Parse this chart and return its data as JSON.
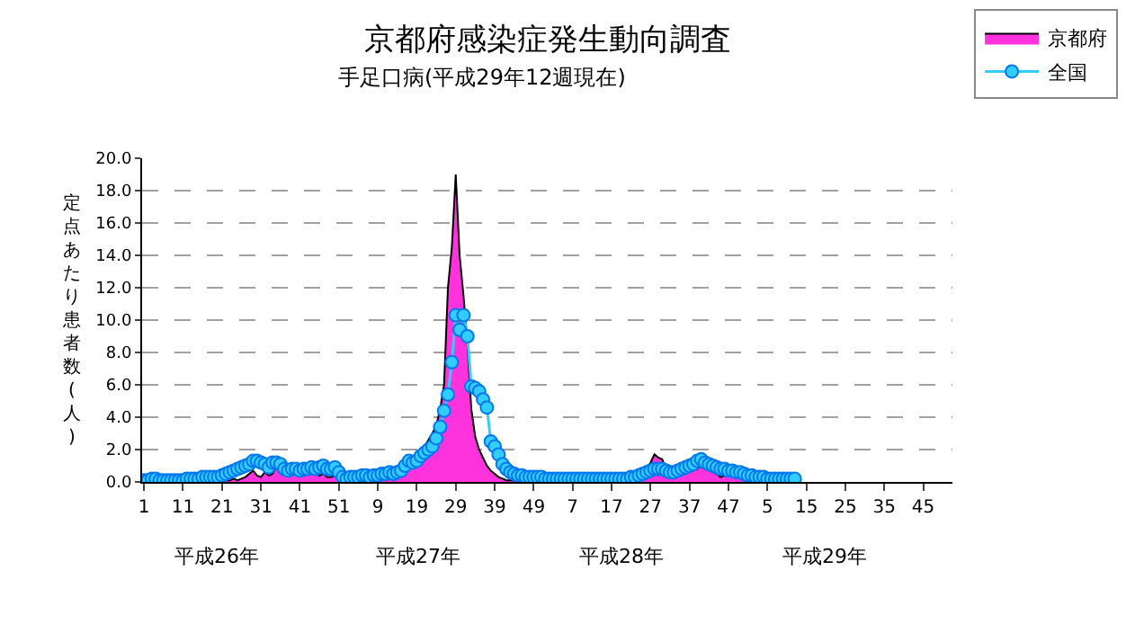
{
  "chart_data": {
    "type": "line",
    "title": "京都府感染症発生動向調査",
    "subtitle": "手足口病(平成29年12週現在)",
    "ylabel": "定点あたり患者数(人)",
    "categories": [
      "1",
      null,
      null,
      null,
      null,
      null,
      null,
      null,
      null,
      null,
      "11",
      null,
      null,
      null,
      null,
      null,
      null,
      null,
      null,
      null,
      "21",
      null,
      null,
      null,
      null,
      null,
      null,
      null,
      null,
      null,
      "31",
      null,
      null,
      null,
      null,
      null,
      null,
      null,
      null,
      null,
      "41",
      null,
      null,
      null,
      null,
      null,
      null,
      null,
      null,
      null,
      "51",
      null,
      null,
      null,
      null,
      null,
      null,
      null,
      null,
      null,
      "9",
      null,
      null,
      null,
      null,
      null,
      null,
      null,
      null,
      null,
      "19",
      null,
      null,
      null,
      null,
      null,
      null,
      null,
      null,
      null,
      "29",
      null,
      null,
      null,
      null,
      null,
      null,
      null,
      null,
      null,
      "39",
      null,
      null,
      null,
      null,
      null,
      null,
      null,
      null,
      null,
      "49",
      null,
      null,
      null,
      null,
      null,
      null,
      null,
      null,
      null,
      "7",
      null,
      null,
      null,
      null,
      null,
      null,
      null,
      null,
      null,
      "17",
      null,
      null,
      null,
      null,
      null,
      null,
      null,
      null,
      null,
      "27",
      null,
      null,
      null,
      null,
      null,
      null,
      null,
      null,
      null,
      "37",
      null,
      null,
      null,
      null,
      null,
      null,
      null,
      null,
      null,
      "47",
      null,
      null,
      null,
      null,
      null,
      null,
      null,
      null,
      null,
      "5",
      null,
      null,
      null,
      null,
      null,
      null,
      null,
      null,
      null,
      "15",
      null,
      null,
      null,
      null,
      null,
      null,
      null,
      null,
      null,
      "25",
      null,
      null,
      null,
      null,
      null,
      null,
      null,
      null,
      null,
      "35",
      null,
      null,
      null,
      null,
      null,
      null,
      null,
      null,
      null,
      "45",
      null,
      null,
      null,
      null,
      null,
      null,
      null
    ],
    "series": [
      {
        "name": "京都府",
        "type": "area",
        "color": "#ff33dd",
        "values": [
          0,
          0,
          0,
          0,
          0,
          0,
          0,
          0,
          0,
          0,
          0,
          0,
          0,
          0,
          0,
          0,
          0,
          0,
          0,
          0,
          0.0,
          0.1,
          0.1,
          0.2,
          0.1,
          0.2,
          0.3,
          0.5,
          0.7,
          0.4,
          0.3,
          0.6,
          0.4,
          0.5,
          1.0,
          0.7,
          0.5,
          0.4,
          0.5,
          0.6,
          0.5,
          0.4,
          0.5,
          0.6,
          0.5,
          0.4,
          0.5,
          0.3,
          0.3,
          0.4,
          0.2,
          0.1,
          0.1,
          0.1,
          0.1,
          0.2,
          0.1,
          0.2,
          0.2,
          0.1,
          0.2,
          0.2,
          0.3,
          0.3,
          0.4,
          0.5,
          0.6,
          0.8,
          1.0,
          1.2,
          1.5,
          1.8,
          2.2,
          2.6,
          3.0,
          3.5,
          4.5,
          6.0,
          12.0,
          14.5,
          19.0,
          14.0,
          11.5,
          8.5,
          4.5,
          2.8,
          2.0,
          1.5,
          1.0,
          0.7,
          0.5,
          0.3,
          0.2,
          0.1,
          0.1,
          0.1,
          0.0,
          0.0,
          0.1,
          0.0,
          0.0,
          0.1,
          0.0,
          0.0,
          0,
          0,
          0,
          0,
          0,
          0,
          0,
          0,
          0,
          0,
          0,
          0,
          0,
          0,
          0,
          0,
          0,
          0,
          0,
          0,
          0.1,
          0.2,
          0.3,
          0.4,
          0.5,
          0.8,
          1.2,
          1.7,
          1.5,
          1.4,
          0.7,
          0.6,
          0.6,
          0.8,
          0.9,
          1.1,
          1.2,
          0.9,
          0.8,
          1.0,
          1.1,
          0.9,
          0.7,
          0.5,
          0.3,
          0.4,
          0.5,
          0.4,
          0.3,
          0.3,
          0.2,
          0.2,
          0.1,
          0.1,
          0.1,
          0.1,
          0.1,
          0.1,
          0.1,
          0.1,
          0.1,
          0.1,
          0.1,
          0.1,
          null,
          null,
          null,
          null,
          null,
          null,
          null,
          null,
          null,
          null,
          null,
          null,
          null,
          null,
          null,
          null,
          null,
          null,
          null,
          null,
          null,
          null,
          null,
          null,
          null,
          null,
          null,
          null,
          null,
          null,
          null,
          null,
          null,
          null,
          null,
          null,
          null,
          null,
          null,
          null
        ]
      },
      {
        "name": "全国",
        "type": "line",
        "marker": "circle",
        "color": "#33ccff",
        "values": [
          0.1,
          0.1,
          0.2,
          0.2,
          0.1,
          0.1,
          0.1,
          0.1,
          0.1,
          0.1,
          0.1,
          0.2,
          0.2,
          0.2,
          0.2,
          0.3,
          0.3,
          0.3,
          0.3,
          0.3,
          0.4,
          0.5,
          0.6,
          0.7,
          0.8,
          0.9,
          1.0,
          1.1,
          1.3,
          1.3,
          1.2,
          1.1,
          0.9,
          1.2,
          1.2,
          1.1,
          0.8,
          0.7,
          0.8,
          0.8,
          0.7,
          0.8,
          0.8,
          0.9,
          0.8,
          0.9,
          1.0,
          0.8,
          0.8,
          0.9,
          0.6,
          0.3,
          0.2,
          0.3,
          0.3,
          0.3,
          0.4,
          0.4,
          0.3,
          0.4,
          0.4,
          0.5,
          0.5,
          0.6,
          0.5,
          0.6,
          0.7,
          1.0,
          1.3,
          1.2,
          1.3,
          1.6,
          1.8,
          2.0,
          2.2,
          2.7,
          3.4,
          4.4,
          5.4,
          7.4,
          10.3,
          9.4,
          10.3,
          9.0,
          5.9,
          5.8,
          5.6,
          5.1,
          4.6,
          2.5,
          2.2,
          1.7,
          1.1,
          0.8,
          0.6,
          0.5,
          0.4,
          0.4,
          0.3,
          0.3,
          0.3,
          0.3,
          0.3,
          0.2,
          0.2,
          0.2,
          0.2,
          0.2,
          0.2,
          0.2,
          0.2,
          0.2,
          0.2,
          0.2,
          0.2,
          0.2,
          0.2,
          0.2,
          0.2,
          0.2,
          0.2,
          0.2,
          0.2,
          0.2,
          0.2,
          0.3,
          0.3,
          0.4,
          0.5,
          0.6,
          0.7,
          0.8,
          0.8,
          0.8,
          0.7,
          0.6,
          0.6,
          0.7,
          0.8,
          0.9,
          1.0,
          1.1,
          1.3,
          1.4,
          1.2,
          1.1,
          1.0,
          0.9,
          0.8,
          0.8,
          0.7,
          0.7,
          0.6,
          0.6,
          0.5,
          0.4,
          0.4,
          0.3,
          0.3,
          0.3,
          0.2,
          0.2,
          0.2,
          0.2,
          0.2,
          0.2,
          0.2,
          0.2,
          null,
          null,
          null,
          null,
          null,
          null,
          null,
          null,
          null,
          null,
          null,
          null,
          null,
          null,
          null,
          null,
          null,
          null,
          null,
          null,
          null,
          null,
          null,
          null,
          null,
          null,
          null,
          null,
          null,
          null,
          null,
          null,
          null,
          null,
          null,
          null,
          null,
          null,
          null,
          null
        ]
      }
    ],
    "ylim": [
      0,
      20
    ],
    "yticks": [
      {
        "value": 0,
        "label": "0.0"
      },
      {
        "value": 2,
        "label": "2.0"
      },
      {
        "value": 4,
        "label": "4.0"
      },
      {
        "value": 6,
        "label": "6.0"
      },
      {
        "value": 8,
        "label": "8.0"
      },
      {
        "value": 10,
        "label": "10.0"
      },
      {
        "value": 12,
        "label": "12.0"
      },
      {
        "value": 14,
        "label": "14.0"
      },
      {
        "value": 16,
        "label": "16.0"
      },
      {
        "value": 18,
        "label": "18.0"
      },
      {
        "value": 20,
        "label": "20.0"
      }
    ],
    "grid": "y",
    "legend": "top right",
    "annotations": [
      "平成26年",
      "平成27年",
      "平成28年",
      "平成29年"
    ]
  }
}
